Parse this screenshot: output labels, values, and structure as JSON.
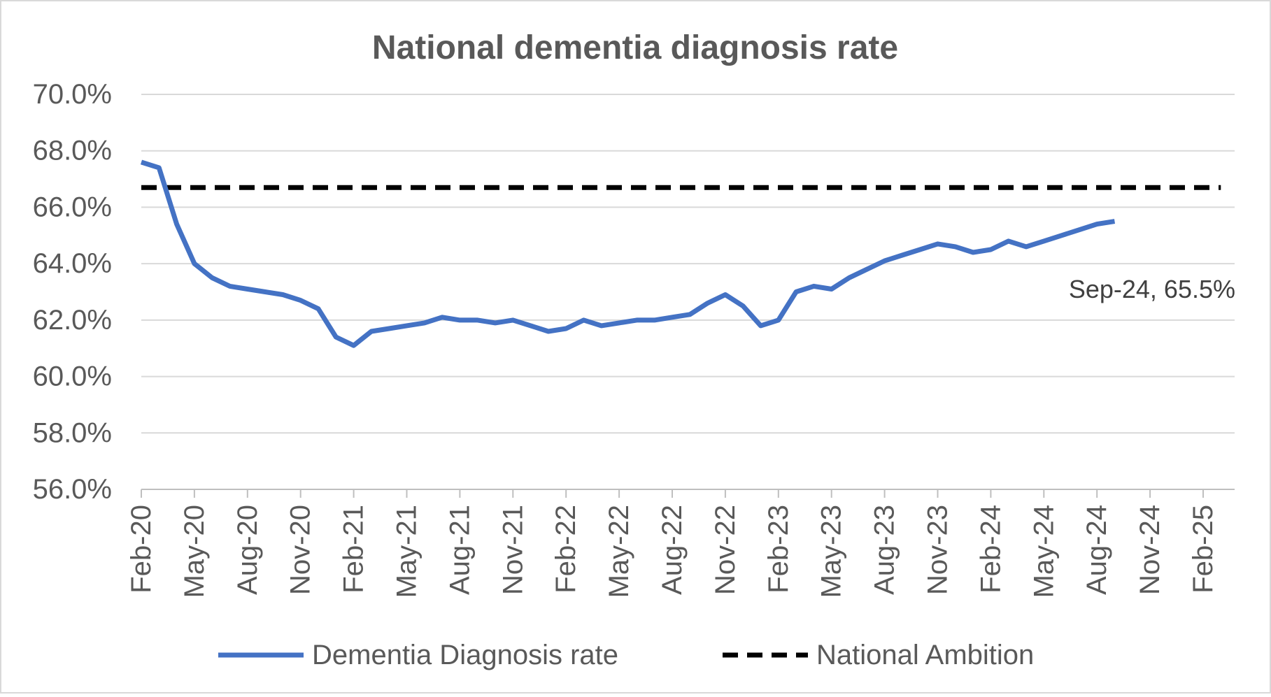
{
  "chart_data": {
    "type": "line",
    "title": "National dementia diagnosis rate",
    "xlabel": "",
    "ylabel": "",
    "ylim": [
      56.0,
      70.0
    ],
    "y_ticks": [
      "56.0%",
      "58.0%",
      "60.0%",
      "62.0%",
      "64.0%",
      "66.0%",
      "68.0%",
      "70.0%"
    ],
    "x_ticks": [
      "Feb-20",
      "May-20",
      "Aug-20",
      "Nov-20",
      "Feb-21",
      "May-21",
      "Aug-21",
      "Nov-21",
      "Feb-22",
      "May-22",
      "Aug-22",
      "Nov-22",
      "Feb-23",
      "May-23",
      "Aug-23",
      "Nov-23",
      "Feb-24",
      "May-24",
      "Aug-24",
      "Nov-24",
      "Feb-25"
    ],
    "grid": true,
    "legend_position": "bottom",
    "series": [
      {
        "name": "Dementia Diagnosis rate",
        "color": "#4472C4",
        "style": "solid",
        "x": [
          "Feb-20",
          "Mar-20",
          "Apr-20",
          "May-20",
          "Jun-20",
          "Jul-20",
          "Aug-20",
          "Sep-20",
          "Oct-20",
          "Nov-20",
          "Dec-20",
          "Jan-21",
          "Feb-21",
          "Mar-21",
          "Apr-21",
          "May-21",
          "Jun-21",
          "Jul-21",
          "Aug-21",
          "Sep-21",
          "Oct-21",
          "Nov-21",
          "Dec-21",
          "Jan-22",
          "Feb-22",
          "Mar-22",
          "Apr-22",
          "May-22",
          "Jun-22",
          "Jul-22",
          "Aug-22",
          "Sep-22",
          "Oct-22",
          "Nov-22",
          "Dec-22",
          "Jan-23",
          "Feb-23",
          "Mar-23",
          "Apr-23",
          "May-23",
          "Jun-23",
          "Jul-23",
          "Aug-23",
          "Sep-23",
          "Oct-23",
          "Nov-23",
          "Dec-23",
          "Jan-24",
          "Feb-24",
          "Mar-24",
          "Apr-24",
          "May-24",
          "Jun-24",
          "Jul-24",
          "Aug-24",
          "Sep-24"
        ],
        "values": [
          67.6,
          67.4,
          65.4,
          64.0,
          63.5,
          63.2,
          63.1,
          63.0,
          62.9,
          62.7,
          62.4,
          61.4,
          61.1,
          61.6,
          61.7,
          61.8,
          61.9,
          62.1,
          62.0,
          62.0,
          61.9,
          62.0,
          61.8,
          61.6,
          61.7,
          62.0,
          61.8,
          61.9,
          62.0,
          62.0,
          62.1,
          62.2,
          62.6,
          62.9,
          62.5,
          61.8,
          62.0,
          63.0,
          63.2,
          63.1,
          63.5,
          63.8,
          64.1,
          64.3,
          64.5,
          64.7,
          64.6,
          64.4,
          64.5,
          64.8,
          64.6,
          64.8,
          65.0,
          65.2,
          65.4,
          65.5
        ]
      },
      {
        "name": "National Ambition",
        "color": "#000000",
        "style": "dashed",
        "x": [
          "Feb-20",
          "Mar-25"
        ],
        "values": [
          66.7,
          66.7
        ]
      }
    ],
    "annotation": {
      "text": "Sep-24, 65.5%",
      "x": "Sep-24",
      "y": 65.5
    }
  }
}
